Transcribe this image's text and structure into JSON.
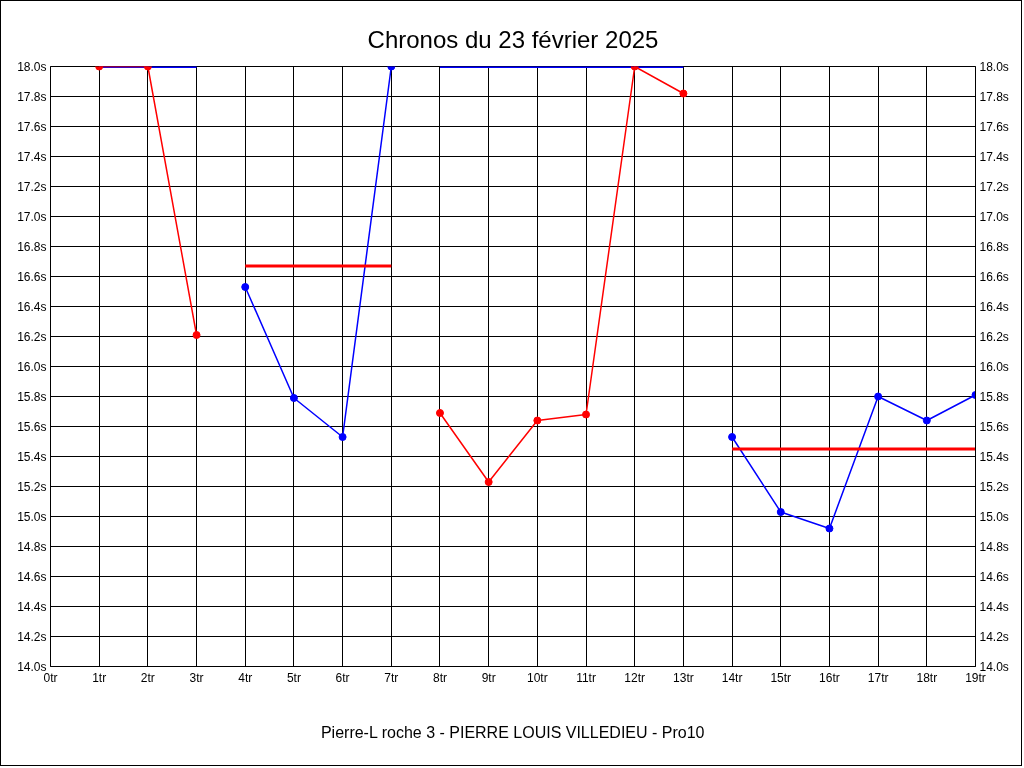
{
  "chart_data": {
    "type": "line",
    "title": "Chronos du 23 février 2025",
    "xlabel": "Pierre-L roche 3 - PIERRE LOUIS VILLEDIEU - Pro10",
    "series": [
      {
        "color": "#0000ff",
        "x": [
          1,
          3
        ],
        "values": [
          18.0,
          18.0
        ],
        "marker": "none"
      },
      {
        "color": "#0000ff",
        "x": [
          4,
          5,
          6,
          7
        ],
        "values": [
          16.53,
          15.79,
          15.53,
          18.0
        ]
      },
      {
        "color": "#0000ff",
        "x": [
          8,
          13
        ],
        "values": [
          18.0,
          18.0
        ],
        "marker": "none"
      },
      {
        "color": "#0000ff",
        "x": [
          14,
          15,
          16,
          17,
          18,
          19
        ],
        "values": [
          15.53,
          15.03,
          14.92,
          15.8,
          15.64,
          15.81
        ]
      },
      {
        "color": "#ff0000",
        "x": [
          1,
          2,
          3
        ],
        "values": [
          18.0,
          18.0,
          16.21
        ]
      },
      {
        "color": "#ff0000",
        "x": [
          4,
          7
        ],
        "values": [
          16.67,
          16.67
        ],
        "marker": "none"
      },
      {
        "color": "#ff0000",
        "x": [
          8,
          9,
          10,
          11,
          12,
          13
        ],
        "values": [
          15.69,
          15.23,
          15.64,
          15.68,
          18.0,
          17.82
        ]
      },
      {
        "color": "#ff0000",
        "x": [
          14,
          19
        ],
        "values": [
          15.45,
          15.45
        ],
        "marker": "none"
      }
    ],
    "xlim": [
      0,
      19
    ],
    "xticks": [
      {
        "value": 0,
        "label": "0tr"
      },
      {
        "value": 1,
        "label": "1tr"
      },
      {
        "value": 2,
        "label": "2tr"
      },
      {
        "value": 3,
        "label": "3tr"
      },
      {
        "value": 4,
        "label": "4tr"
      },
      {
        "value": 5,
        "label": "5tr"
      },
      {
        "value": 6,
        "label": "6tr"
      },
      {
        "value": 7,
        "label": "7tr"
      },
      {
        "value": 8,
        "label": "8tr"
      },
      {
        "value": 9,
        "label": "9tr"
      },
      {
        "value": 10,
        "label": "10tr"
      },
      {
        "value": 11,
        "label": "11tr"
      },
      {
        "value": 12,
        "label": "12tr"
      },
      {
        "value": 13,
        "label": "13tr"
      },
      {
        "value": 14,
        "label": "14tr"
      },
      {
        "value": 15,
        "label": "15tr"
      },
      {
        "value": 16,
        "label": "16tr"
      },
      {
        "value": 17,
        "label": "17tr"
      },
      {
        "value": 18,
        "label": "18tr"
      },
      {
        "value": 19,
        "label": "19tr"
      }
    ],
    "ylim": [
      14.0,
      18.0
    ],
    "yticks": [
      {
        "value": 14.0,
        "label": "14.0s"
      },
      {
        "value": 14.2,
        "label": "14.2s"
      },
      {
        "value": 14.4,
        "label": "14.4s"
      },
      {
        "value": 14.6,
        "label": "14.6s"
      },
      {
        "value": 14.8,
        "label": "14.8s"
      },
      {
        "value": 15.0,
        "label": "15.0s"
      },
      {
        "value": 15.2,
        "label": "15.2s"
      },
      {
        "value": 15.4,
        "label": "15.4s"
      },
      {
        "value": 15.6,
        "label": "15.6s"
      },
      {
        "value": 15.8,
        "label": "15.8s"
      },
      {
        "value": 16.0,
        "label": "16.0s"
      },
      {
        "value": 16.2,
        "label": "16.2s"
      },
      {
        "value": 16.4,
        "label": "16.4s"
      },
      {
        "value": 16.6,
        "label": "16.6s"
      },
      {
        "value": 16.8,
        "label": "16.8s"
      },
      {
        "value": 17.0,
        "label": "17.0s"
      },
      {
        "value": 17.2,
        "label": "17.2s"
      },
      {
        "value": 17.4,
        "label": "17.4s"
      },
      {
        "value": 17.6,
        "label": "17.6s"
      },
      {
        "value": 17.8,
        "label": "17.8s"
      },
      {
        "value": 18.0,
        "label": "18.0s"
      }
    ],
    "y2lim": [
      14.0,
      18.0
    ],
    "y2ticks": [
      {
        "value": 14.0,
        "label": "14.0s"
      },
      {
        "value": 14.2,
        "label": "14.2s"
      },
      {
        "value": 14.4,
        "label": "14.4s"
      },
      {
        "value": 14.6,
        "label": "14.6s"
      },
      {
        "value": 14.8,
        "label": "14.8s"
      },
      {
        "value": 15.0,
        "label": "15.0s"
      },
      {
        "value": 15.2,
        "label": "15.2s"
      },
      {
        "value": 15.4,
        "label": "15.4s"
      },
      {
        "value": 15.6,
        "label": "15.6s"
      },
      {
        "value": 15.8,
        "label": "15.8s"
      },
      {
        "value": 16.0,
        "label": "16.0s"
      },
      {
        "value": 16.2,
        "label": "16.2s"
      },
      {
        "value": 16.4,
        "label": "16.4s"
      },
      {
        "value": 16.6,
        "label": "16.6s"
      },
      {
        "value": 16.8,
        "label": "16.8s"
      },
      {
        "value": 17.0,
        "label": "17.0s"
      },
      {
        "value": 17.2,
        "label": "17.2s"
      },
      {
        "value": 17.4,
        "label": "17.4s"
      },
      {
        "value": 17.6,
        "label": "17.6s"
      },
      {
        "value": 17.8,
        "label": "17.8s"
      },
      {
        "value": 18.0,
        "label": "18.0s"
      }
    ],
    "grid": true,
    "marker": "circle"
  }
}
